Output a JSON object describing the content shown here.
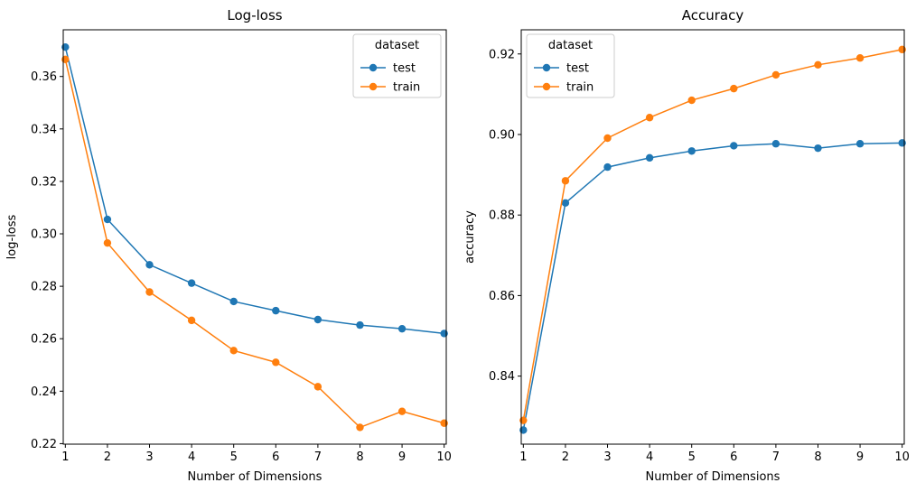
{
  "chart_data": [
    {
      "type": "line",
      "title": "Log-loss",
      "xlabel": "Number of Dimensions",
      "ylabel": "log-loss",
      "x": [
        1,
        2,
        3,
        4,
        5,
        6,
        7,
        8,
        9,
        10
      ],
      "xlim": [
        0.95,
        10.05
      ],
      "ylim": [
        0.2198,
        0.3778
      ],
      "xticks": [
        1,
        2,
        3,
        4,
        5,
        6,
        7,
        8,
        9,
        10
      ],
      "yticks": [
        0.22,
        0.24,
        0.26,
        0.28,
        0.3,
        0.32,
        0.34,
        0.36
      ],
      "ytick_labels": [
        "0.22",
        "0.24",
        "0.26",
        "0.28",
        "0.30",
        "0.32",
        "0.34",
        "0.36"
      ],
      "grid": false,
      "legend": {
        "title": "dataset",
        "placement": "top-right"
      },
      "series": [
        {
          "name": "test",
          "color": "#1f77b4",
          "marker": "circle",
          "values": [
            0.3712,
            0.3055,
            0.2882,
            0.2812,
            0.2742,
            0.2707,
            0.2673,
            0.2652,
            0.2638,
            0.262
          ]
        },
        {
          "name": "train",
          "color": "#ff7f0e",
          "marker": "circle",
          "values": [
            0.3665,
            0.2965,
            0.2778,
            0.267,
            0.2555,
            0.251,
            0.2417,
            0.2262,
            0.2323,
            0.2278
          ]
        }
      ]
    },
    {
      "type": "line",
      "title": "Accuracy",
      "xlabel": "Number of Dimensions",
      "ylabel": "accuracy",
      "x": [
        1,
        2,
        3,
        4,
        5,
        6,
        7,
        8,
        9,
        10
      ],
      "xlim": [
        0.95,
        10.05
      ],
      "ylim": [
        0.8231,
        0.926
      ],
      "xticks": [
        1,
        2,
        3,
        4,
        5,
        6,
        7,
        8,
        9,
        10
      ],
      "yticks": [
        0.84,
        0.86,
        0.88,
        0.9,
        0.92
      ],
      "ytick_labels": [
        "0.84",
        "0.86",
        "0.88",
        "0.90",
        "0.92"
      ],
      "grid": false,
      "legend": {
        "title": "dataset",
        "placement": "top-left"
      },
      "series": [
        {
          "name": "test",
          "color": "#1f77b4",
          "marker": "circle",
          "values": [
            0.8266,
            0.883,
            0.8919,
            0.8942,
            0.8959,
            0.8972,
            0.8977,
            0.8966,
            0.8977,
            0.8979
          ]
        },
        {
          "name": "train",
          "color": "#ff7f0e",
          "marker": "circle",
          "values": [
            0.829,
            0.8885,
            0.8991,
            0.9042,
            0.9085,
            0.9114,
            0.9148,
            0.9173,
            0.919,
            0.9211
          ]
        }
      ]
    }
  ]
}
